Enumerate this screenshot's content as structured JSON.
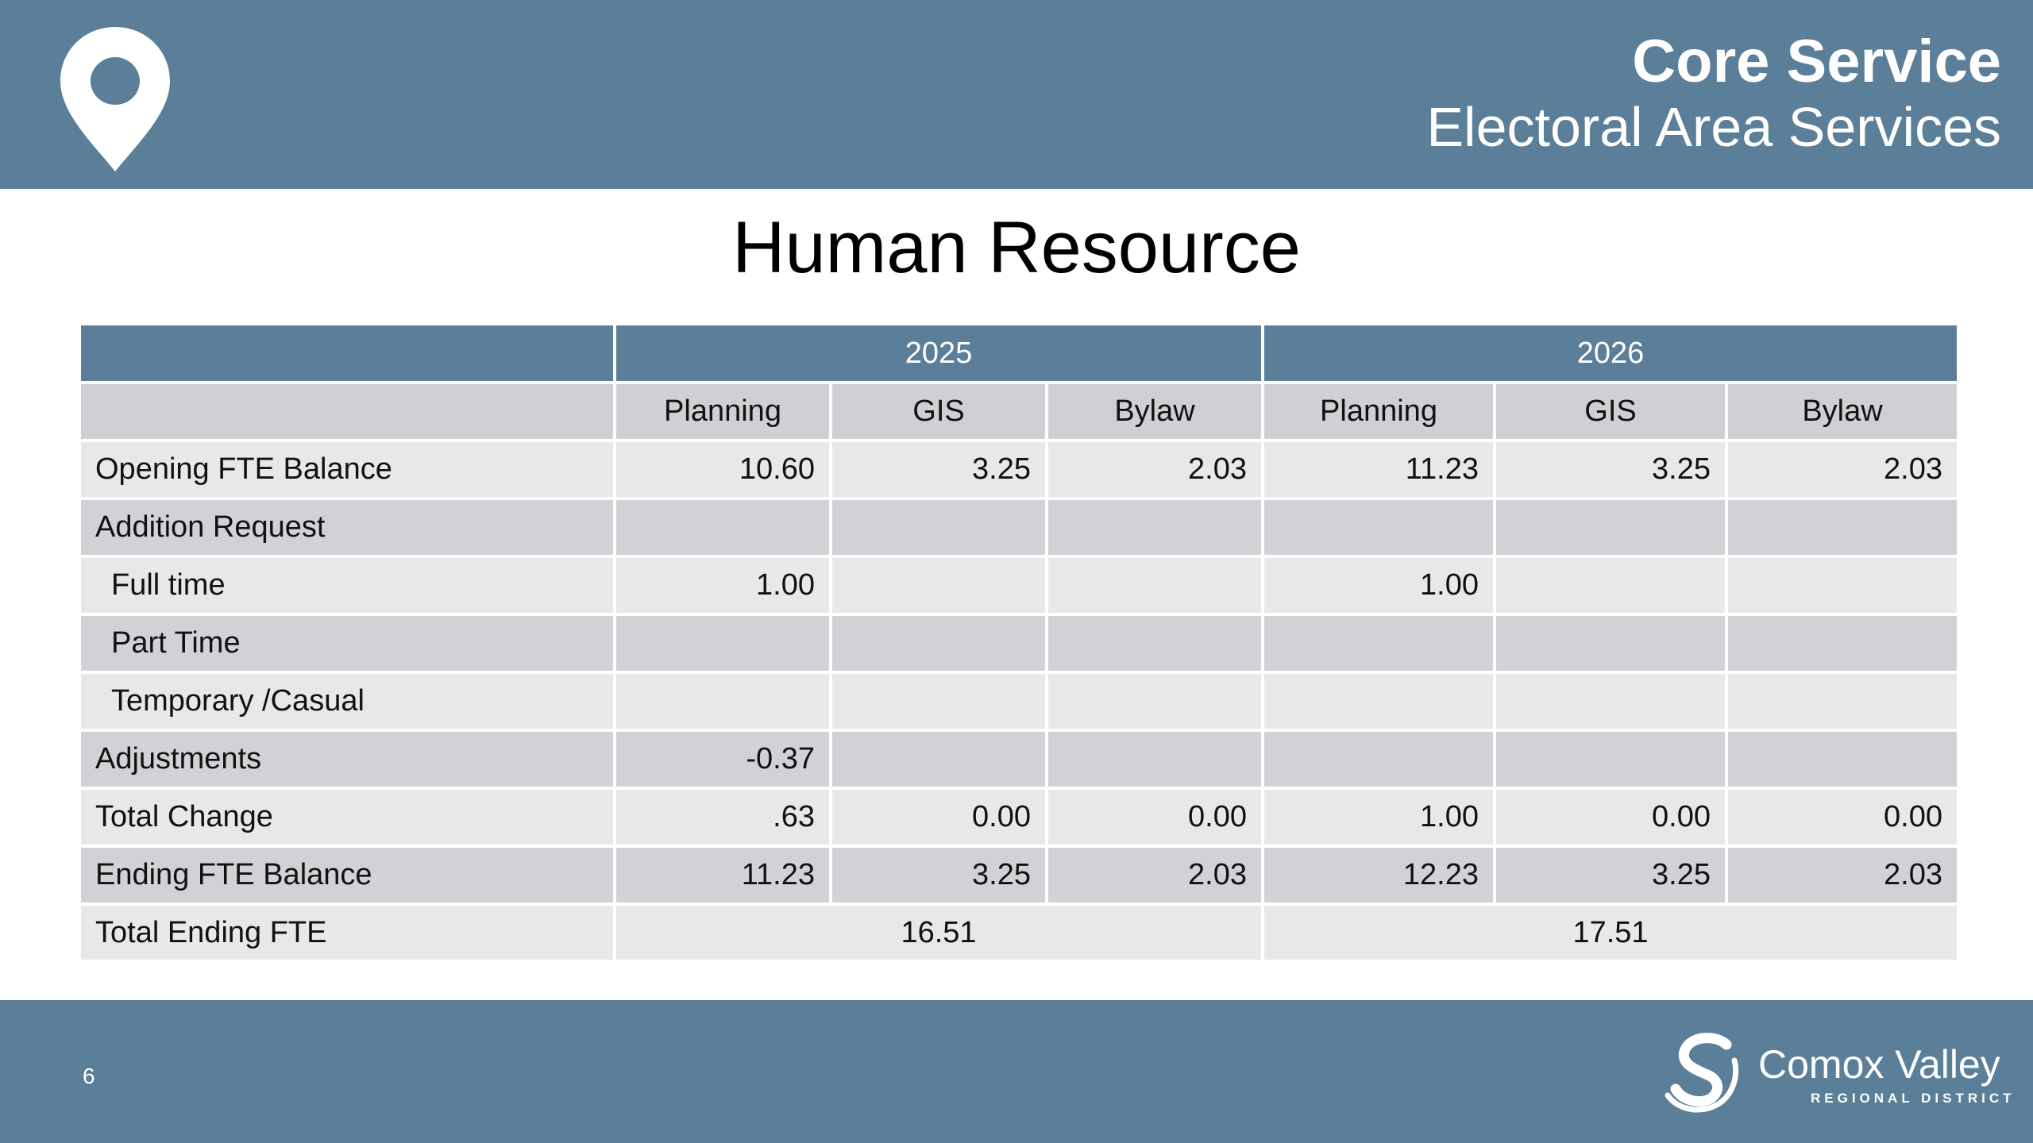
{
  "header": {
    "title": "Core Service",
    "subtitle": "Electoral Area Services"
  },
  "page_title": "Human Resource",
  "table": {
    "years": [
      "2025",
      "2026"
    ],
    "columns": [
      "Planning",
      "GIS",
      "Bylaw",
      "Planning",
      "GIS",
      "Bylaw"
    ],
    "rows": [
      {
        "label": "Opening FTE Balance",
        "values": [
          "10.60",
          "3.25",
          "2.03",
          "11.23",
          "3.25",
          "2.03"
        ]
      },
      {
        "label": "Addition Request",
        "values": [
          "",
          "",
          "",
          "",
          "",
          ""
        ]
      },
      {
        "label": "Full time",
        "values": [
          "1.00",
          "",
          "",
          "1.00",
          "",
          ""
        ]
      },
      {
        "label": "Part Time",
        "values": [
          "",
          "",
          "",
          "",
          "",
          ""
        ]
      },
      {
        "label": "Temporary /Casual",
        "values": [
          "",
          "",
          "",
          "",
          "",
          ""
        ]
      },
      {
        "label": "Adjustments",
        "values": [
          "-0.37",
          "",
          "",
          "",
          "",
          ""
        ]
      },
      {
        "label": "Total Change",
        "values": [
          ".63",
          "0.00",
          "0.00",
          "1.00",
          "0.00",
          "0.00"
        ]
      },
      {
        "label": "Ending FTE Balance",
        "values": [
          "11.23",
          "3.25",
          "2.03",
          "12.23",
          "3.25",
          "2.03"
        ]
      }
    ],
    "total": {
      "label": "Total Ending FTE",
      "values": [
        "16.51",
        "17.51"
      ]
    }
  },
  "footer": {
    "page_number": "6",
    "logo_name": "Comox Valley",
    "logo_sub": "REGIONAL DISTRICT"
  },
  "colors": {
    "brand": "#5b7f99",
    "row_light": "#e8e8e9",
    "row_dark": "#d1d2d5"
  },
  "icons": {
    "header": "map-pin-icon",
    "logo": "comox-valley-logo-mark"
  }
}
